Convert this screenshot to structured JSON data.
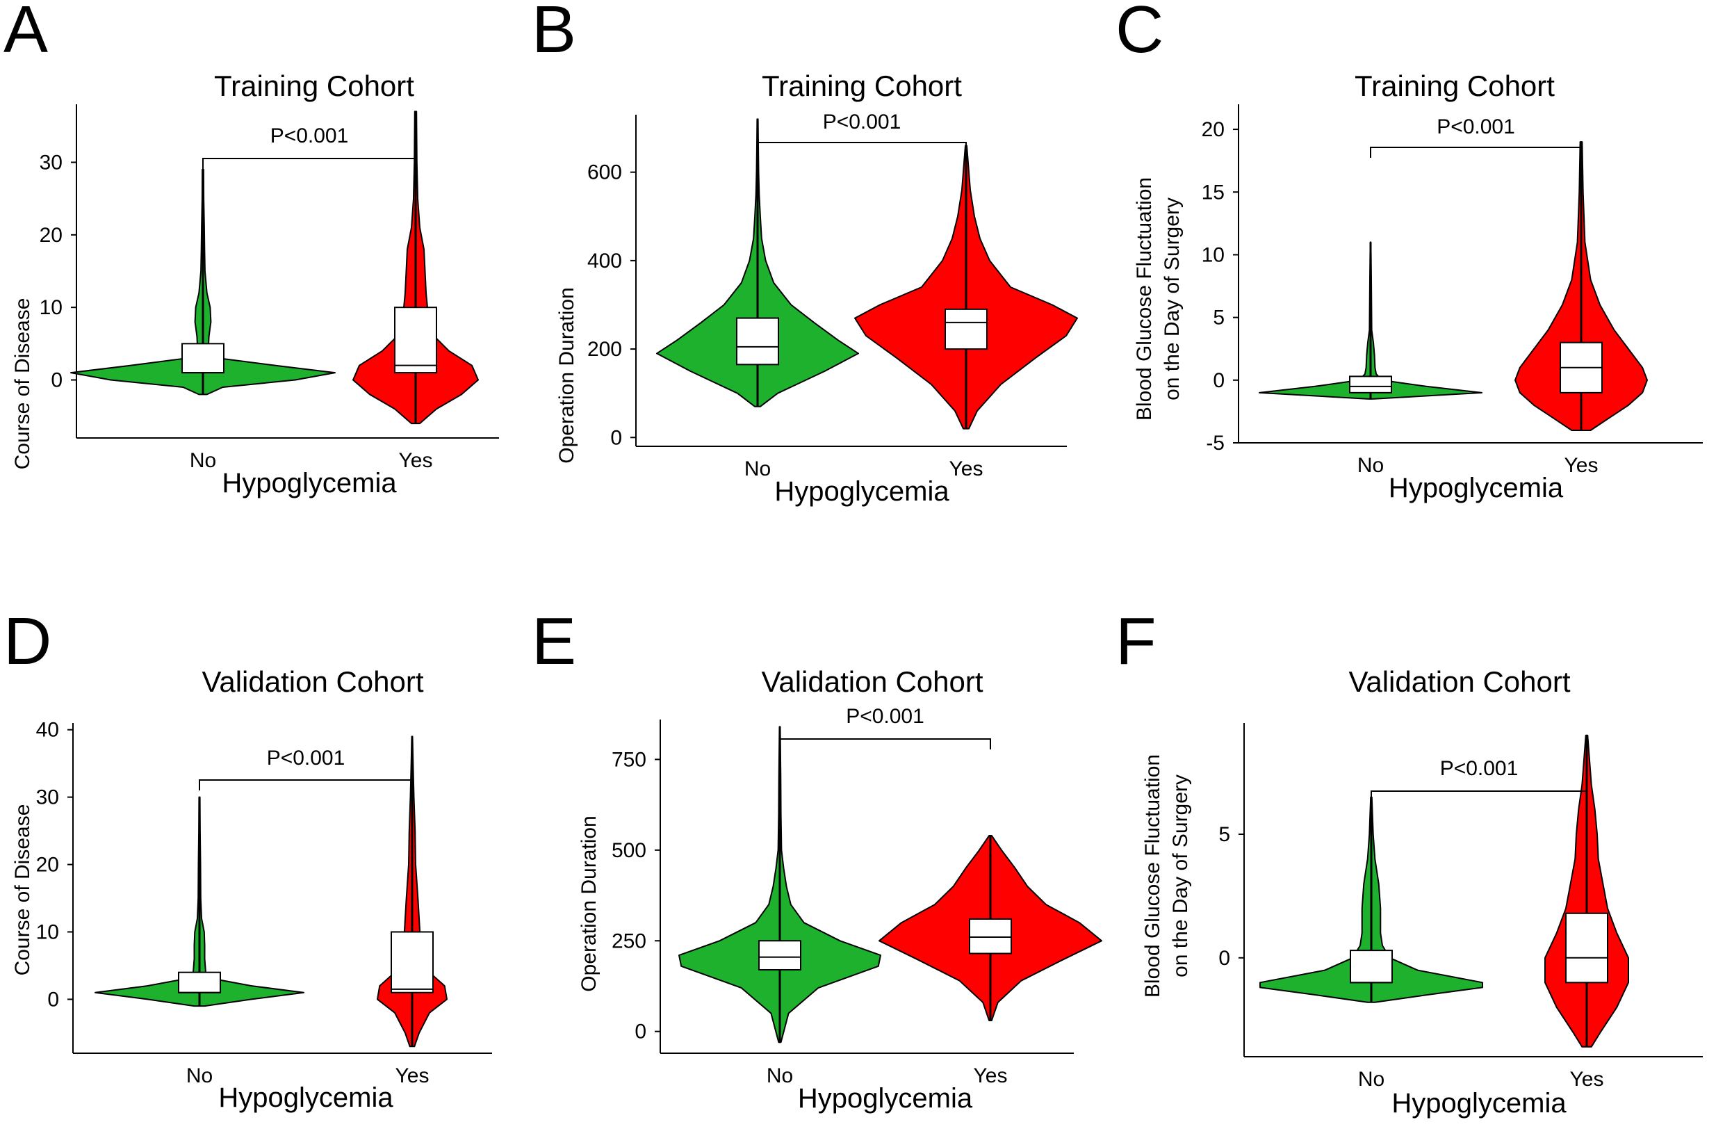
{
  "colors": {
    "no_group": "#1eb12e",
    "yes_group": "#ff0000",
    "box_fill": "#ffffff",
    "outline": "#000000"
  },
  "chart_data": [
    {
      "panel": "A",
      "type": "violin",
      "title": "Training Cohort",
      "xlabel": "Hypoglycemia",
      "ylabel": "Course of Disease",
      "ylabel_lines": [
        "Course of Disease"
      ],
      "categories": [
        "No",
        "Yes"
      ],
      "yticks": [
        0,
        10,
        20,
        30
      ],
      "ylim": [
        -8,
        38
      ],
      "annotation": "P<0.001",
      "groups": [
        {
          "name": "No",
          "min": -2,
          "max": 29,
          "q1": 1,
          "median": 1,
          "q3": 5,
          "density": [
            [
              -2,
              0.03
            ],
            [
              -1,
              0.15
            ],
            [
              0,
              0.7
            ],
            [
              1,
              1.0
            ],
            [
              2,
              0.55
            ],
            [
              3,
              0.12
            ],
            [
              4,
              0.04
            ],
            [
              6,
              0.045
            ],
            [
              8,
              0.06
            ],
            [
              10,
              0.055
            ],
            [
              12,
              0.03
            ],
            [
              15,
              0.015
            ],
            [
              18,
              0.012
            ],
            [
              21,
              0.01
            ],
            [
              25,
              0.006
            ],
            [
              29,
              0.005
            ]
          ]
        },
        {
          "name": "Yes",
          "min": -6,
          "max": 37,
          "q1": 1,
          "median": 2,
          "q3": 10,
          "density": [
            [
              -6,
              0.02
            ],
            [
              -4,
              0.1
            ],
            [
              -2,
              0.22
            ],
            [
              0,
              0.3
            ],
            [
              2,
              0.27
            ],
            [
              4,
              0.16
            ],
            [
              6,
              0.09
            ],
            [
              9,
              0.06
            ],
            [
              12,
              0.05
            ],
            [
              15,
              0.045
            ],
            [
              18,
              0.04
            ],
            [
              21,
              0.02
            ],
            [
              25,
              0.01
            ],
            [
              30,
              0.006
            ],
            [
              37,
              0.004
            ]
          ]
        }
      ]
    },
    {
      "panel": "B",
      "type": "violin",
      "title": "Training Cohort",
      "xlabel": "Hypoglycemia",
      "ylabel": "Operation Duration",
      "ylabel_lines": [
        "Operation Duration"
      ],
      "categories": [
        "No",
        "Yes"
      ],
      "yticks": [
        0,
        200,
        400,
        600
      ],
      "ylim": [
        -20,
        730
      ],
      "annotation": "P<0.001",
      "groups": [
        {
          "name": "No",
          "min": 70,
          "max": 720,
          "q1": 165,
          "median": 205,
          "q3": 270,
          "density": [
            [
              70,
              0.02
            ],
            [
              100,
              0.15
            ],
            [
              150,
              0.5
            ],
            [
              190,
              0.75
            ],
            [
              220,
              0.6
            ],
            [
              260,
              0.42
            ],
            [
              300,
              0.25
            ],
            [
              350,
              0.12
            ],
            [
              400,
              0.06
            ],
            [
              450,
              0.03
            ],
            [
              500,
              0.02
            ],
            [
              550,
              0.012
            ],
            [
              600,
              0.008
            ],
            [
              660,
              0.005
            ],
            [
              720,
              0.003
            ]
          ]
        },
        {
          "name": "Yes",
          "min": 20,
          "max": 660,
          "q1": 200,
          "median": 260,
          "q3": 290,
          "density": [
            [
              20,
              0.02
            ],
            [
              60,
              0.08
            ],
            [
              120,
              0.25
            ],
            [
              180,
              0.5
            ],
            [
              230,
              0.72
            ],
            [
              270,
              0.8
            ],
            [
              300,
              0.62
            ],
            [
              340,
              0.32
            ],
            [
              400,
              0.17
            ],
            [
              450,
              0.1
            ],
            [
              500,
              0.06
            ],
            [
              560,
              0.03
            ],
            [
              600,
              0.02
            ],
            [
              660,
              0.005
            ]
          ]
        }
      ]
    },
    {
      "panel": "C",
      "type": "violin",
      "title": "Training Cohort",
      "xlabel": "Hypoglycemia",
      "ylabel": "Blood Glucose Fluctuation on the Day of Surgery",
      "ylabel_lines": [
        "Blood Glucose Fluctuation",
        "on the Day of Surgery"
      ],
      "categories": [
        "No",
        "Yes"
      ],
      "yticks": [
        -5,
        0,
        5,
        10,
        15,
        20
      ],
      "ylim": [
        -5,
        22
      ],
      "annotation": "P<0.001",
      "groups": [
        {
          "name": "No",
          "min": -1.5,
          "max": 11,
          "q1": -1,
          "median": -0.5,
          "q3": 0.3,
          "density": [
            [
              -1.5,
              0.02
            ],
            [
              -1,
              1.0
            ],
            [
              -0.5,
              0.5
            ],
            [
              0,
              0.1
            ],
            [
              0.5,
              0.05
            ],
            [
              1,
              0.04
            ],
            [
              2,
              0.035
            ],
            [
              3,
              0.025
            ],
            [
              4,
              0.01
            ],
            [
              6,
              0.008
            ],
            [
              8,
              0.006
            ],
            [
              10,
              0.004
            ],
            [
              11,
              0.002
            ]
          ]
        },
        {
          "name": "Yes",
          "min": -4,
          "max": 19,
          "q1": -1,
          "median": 1,
          "q3": 3,
          "density": [
            [
              -4,
              0.02
            ],
            [
              -3,
              0.06
            ],
            [
              -2,
              0.1
            ],
            [
              -1,
              0.13
            ],
            [
              0,
              0.14
            ],
            [
              1,
              0.13
            ],
            [
              2,
              0.11
            ],
            [
              4,
              0.07
            ],
            [
              6,
              0.04
            ],
            [
              8,
              0.02
            ],
            [
              11,
              0.008
            ],
            [
              15,
              0.004
            ],
            [
              19,
              0.002
            ]
          ]
        }
      ]
    },
    {
      "panel": "D",
      "type": "violin",
      "title": "Validation Cohort",
      "xlabel": "Hypoglycemia",
      "ylabel": "Course of Disease",
      "ylabel_lines": [
        "Course of Disease"
      ],
      "categories": [
        "No",
        "Yes"
      ],
      "yticks": [
        0,
        10,
        20,
        30,
        40
      ],
      "ylim": [
        -8,
        41
      ],
      "annotation": "P<0.001",
      "groups": [
        {
          "name": "No",
          "min": -1,
          "max": 30,
          "q1": 1,
          "median": 1,
          "q3": 4,
          "density": [
            [
              -1,
              0.05
            ],
            [
              0,
              0.5
            ],
            [
              1,
              1.0
            ],
            [
              2,
              0.5
            ],
            [
              3,
              0.15
            ],
            [
              4,
              0.06
            ],
            [
              6,
              0.05
            ],
            [
              8,
              0.05
            ],
            [
              10,
              0.045
            ],
            [
              12,
              0.02
            ],
            [
              15,
              0.012
            ],
            [
              20,
              0.01
            ],
            [
              25,
              0.006
            ],
            [
              30,
              0.004
            ]
          ]
        },
        {
          "name": "Yes",
          "min": -7,
          "max": 39,
          "q1": 1,
          "median": 1.5,
          "q3": 10,
          "density": [
            [
              -7,
              0.02
            ],
            [
              -5,
              0.06
            ],
            [
              -2,
              0.15
            ],
            [
              0,
              0.3
            ],
            [
              2,
              0.28
            ],
            [
              4,
              0.15
            ],
            [
              6,
              0.1
            ],
            [
              9,
              0.07
            ],
            [
              12,
              0.06
            ],
            [
              15,
              0.05
            ],
            [
              20,
              0.03
            ],
            [
              25,
              0.025
            ],
            [
              30,
              0.015
            ],
            [
              35,
              0.008
            ],
            [
              39,
              0.003
            ]
          ]
        }
      ]
    },
    {
      "panel": "E",
      "type": "violin",
      "title": "Validation Cohort",
      "xlabel": "Hypoglycemia",
      "ylabel": "Operation Duration",
      "ylabel_lines": [
        "Operation Duration"
      ],
      "categories": [
        "No",
        "Yes"
      ],
      "yticks": [
        0,
        250,
        500,
        750
      ],
      "ylim": [
        -60,
        860
      ],
      "annotation": "P<0.001",
      "groups": [
        {
          "name": "No",
          "min": -30,
          "max": 840,
          "q1": 170,
          "median": 205,
          "q3": 250,
          "density": [
            [
              -30,
              0.01
            ],
            [
              50,
              0.08
            ],
            [
              120,
              0.35
            ],
            [
              180,
              0.9
            ],
            [
              210,
              0.92
            ],
            [
              250,
              0.55
            ],
            [
              300,
              0.22
            ],
            [
              350,
              0.1
            ],
            [
              400,
              0.06
            ],
            [
              450,
              0.035
            ],
            [
              500,
              0.015
            ],
            [
              600,
              0.01
            ],
            [
              700,
              0.008
            ],
            [
              840,
              0.003
            ]
          ]
        },
        {
          "name": "Yes",
          "min": 30,
          "max": 540,
          "q1": 215,
          "median": 260,
          "q3": 310,
          "density": [
            [
              30,
              0.01
            ],
            [
              80,
              0.06
            ],
            [
              140,
              0.25
            ],
            [
              200,
              0.6
            ],
            [
              250,
              0.9
            ],
            [
              300,
              0.72
            ],
            [
              350,
              0.45
            ],
            [
              400,
              0.3
            ],
            [
              450,
              0.2
            ],
            [
              500,
              0.09
            ],
            [
              540,
              0.01
            ]
          ]
        }
      ]
    },
    {
      "panel": "F",
      "type": "violin",
      "title": "Validation Cohort",
      "xlabel": "Hypoglycemia",
      "ylabel": "Blood Glucose Fluctuation on the Day of Surgery",
      "ylabel_lines": [
        "Blood Glucose Fluctuation",
        "on the Day of Surgery"
      ],
      "categories": [
        "No",
        "Yes"
      ],
      "yticks": [
        0,
        5
      ],
      "ylim": [
        -4,
        9.5
      ],
      "annotation": "P<0.001",
      "groups": [
        {
          "name": "No",
          "min": -1.8,
          "max": 6.5,
          "q1": -1,
          "median": -1,
          "q3": 0.3,
          "density": [
            [
              -1.8,
              0.02
            ],
            [
              -1.5,
              0.3
            ],
            [
              -1.2,
              0.6
            ],
            [
              -1,
              0.6
            ],
            [
              -0.5,
              0.25
            ],
            [
              0,
              0.1
            ],
            [
              0.5,
              0.06
            ],
            [
              1,
              0.05
            ],
            [
              2,
              0.05
            ],
            [
              3,
              0.04
            ],
            [
              4,
              0.02
            ],
            [
              5,
              0.01
            ],
            [
              6.5,
              0.003
            ]
          ]
        },
        {
          "name": "Yes",
          "min": -3.6,
          "max": 9,
          "q1": -1,
          "median": 0,
          "q3": 1.8,
          "density": [
            [
              -3.6,
              0.02
            ],
            [
              -3,
              0.06
            ],
            [
              -2,
              0.13
            ],
            [
              -1,
              0.18
            ],
            [
              0,
              0.18
            ],
            [
              1,
              0.13
            ],
            [
              2,
              0.09
            ],
            [
              3,
              0.07
            ],
            [
              4,
              0.05
            ],
            [
              5,
              0.045
            ],
            [
              6,
              0.035
            ],
            [
              7,
              0.02
            ],
            [
              8,
              0.012
            ],
            [
              9,
              0.004
            ]
          ]
        }
      ]
    }
  ]
}
